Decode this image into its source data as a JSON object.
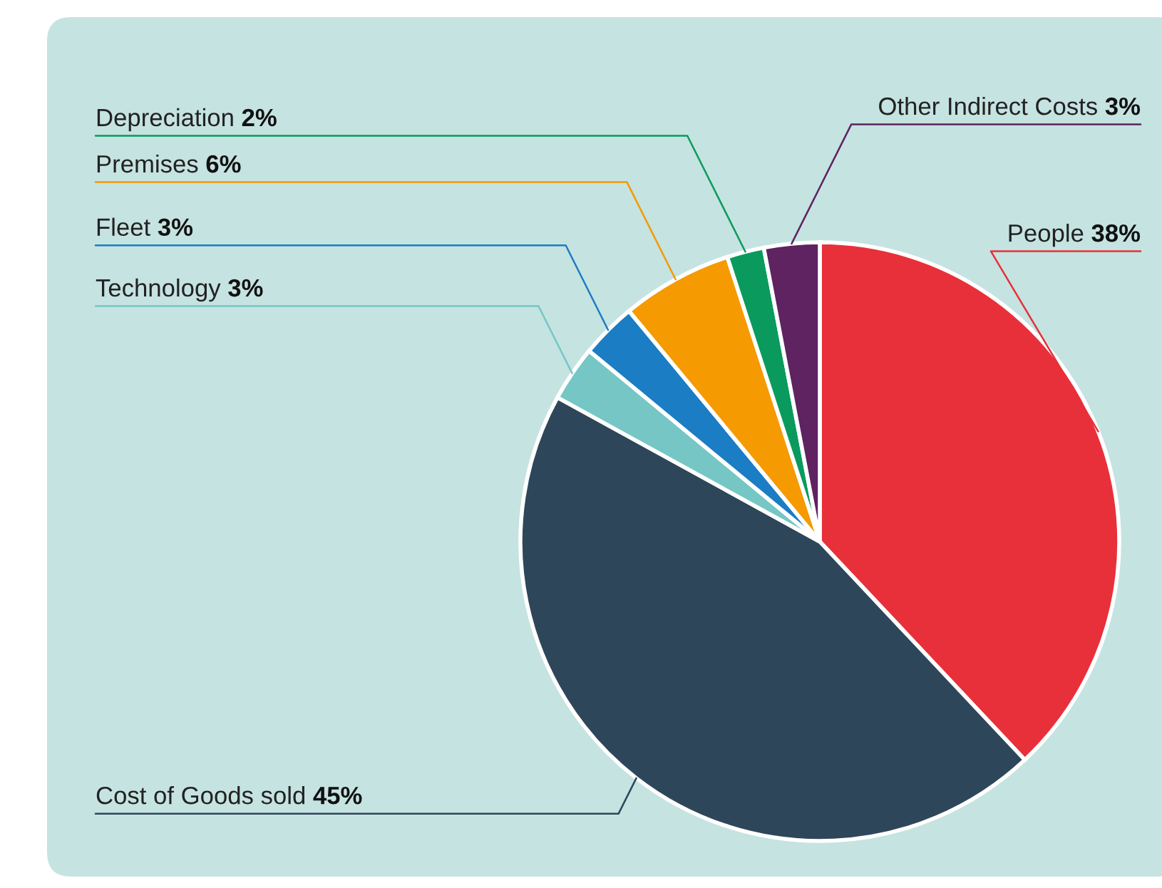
{
  "chart_data": {
    "type": "pie",
    "categories": [
      "People",
      "Cost of Goods sold",
      "Technology",
      "Fleet",
      "Premises",
      "Depreciation",
      "Other Indirect Costs"
    ],
    "values": [
      38,
      45,
      3,
      3,
      6,
      2,
      3
    ],
    "value_labels": [
      "38%",
      "45%",
      "3%",
      "3%",
      "6%",
      "2%",
      "3%"
    ],
    "colors": [
      "#e8303a",
      "#2e4659",
      "#76c6c6",
      "#1b7dc3",
      "#f59a00",
      "#0a9a5e",
      "#5e2360"
    ],
    "legend": false
  }
}
